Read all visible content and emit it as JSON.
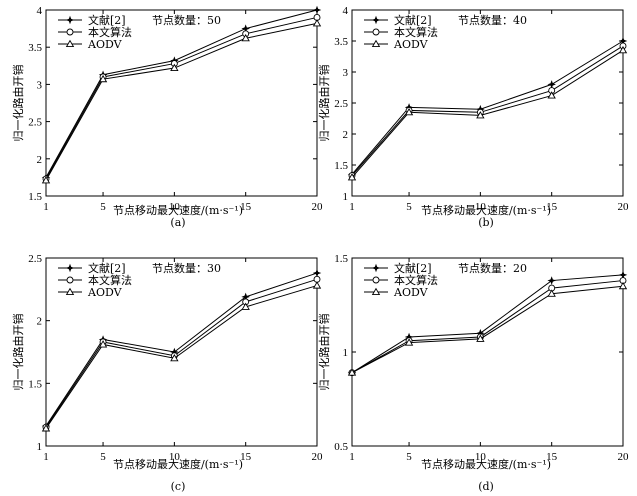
{
  "figure": {
    "series_styles": {
      "文献[2]": "star",
      "本文算法": "circle",
      "AODV": "triangle"
    },
    "colors": {
      "line": "#000000",
      "background": "#ffffff"
    }
  },
  "chart_data": [
    {
      "type": "line",
      "caption": "(a)",
      "annotation": "节点数量：50",
      "xlabel": "节点移动最大速度/(m·s⁻¹)",
      "ylabel": "归一化路由开销",
      "x": [
        1,
        5,
        10,
        15,
        20
      ],
      "xticks": [
        1,
        5,
        10,
        15,
        20
      ],
      "xlim": [
        1,
        20
      ],
      "ylim": [
        1.5,
        4
      ],
      "yticks": [
        1.5,
        2,
        2.5,
        3,
        3.5,
        4
      ],
      "ytick_labels": [
        "1.5",
        "2",
        "2.5",
        "3",
        "3.5",
        "4"
      ],
      "series": [
        {
          "name": "文献[2]",
          "values": [
            1.75,
            3.13,
            3.32,
            3.75,
            4.0
          ]
        },
        {
          "name": "本文算法",
          "values": [
            1.73,
            3.1,
            3.28,
            3.68,
            3.9
          ]
        },
        {
          "name": "AODV",
          "values": [
            1.71,
            3.07,
            3.22,
            3.62,
            3.82
          ]
        }
      ]
    },
    {
      "type": "line",
      "caption": "(b)",
      "annotation": "节点数量：40",
      "xlabel": "节点移动最大速度/(m·s⁻¹)",
      "ylabel": "归一化路由开销",
      "x": [
        1,
        5,
        10,
        15,
        20
      ],
      "xticks": [
        1,
        5,
        10,
        15,
        20
      ],
      "xlim": [
        1,
        20
      ],
      "ylim": [
        1,
        4
      ],
      "yticks": [
        1,
        1.5,
        2,
        2.5,
        3,
        3.5,
        4
      ],
      "ytick_labels": [
        "1",
        "1.5",
        "2",
        "2.5",
        "3",
        "3.5",
        "4"
      ],
      "series": [
        {
          "name": "文献[2]",
          "values": [
            1.35,
            2.43,
            2.4,
            2.8,
            3.5
          ]
        },
        {
          "name": "本文算法",
          "values": [
            1.33,
            2.38,
            2.35,
            2.7,
            3.42
          ]
        },
        {
          "name": "AODV",
          "values": [
            1.3,
            2.35,
            2.3,
            2.62,
            3.35
          ]
        }
      ]
    },
    {
      "type": "line",
      "caption": "(c)",
      "annotation": "节点数量：30",
      "xlabel": "节点移动最大速度/(m·s⁻¹)",
      "ylabel": "归一化路由开销",
      "x": [
        1,
        5,
        10,
        15,
        20
      ],
      "xticks": [
        1,
        5,
        10,
        15,
        20
      ],
      "xlim": [
        1,
        20
      ],
      "ylim": [
        1,
        2.5
      ],
      "yticks": [
        1,
        1.5,
        2,
        2.5
      ],
      "ytick_labels": [
        "1",
        "1.5",
        "2",
        "2.5"
      ],
      "series": [
        {
          "name": "文献[2]",
          "values": [
            1.16,
            1.85,
            1.75,
            2.19,
            2.38
          ]
        },
        {
          "name": "本文算法",
          "values": [
            1.15,
            1.83,
            1.72,
            2.15,
            2.33
          ]
        },
        {
          "name": "AODV",
          "values": [
            1.14,
            1.81,
            1.7,
            2.11,
            2.28
          ]
        }
      ]
    },
    {
      "type": "line",
      "caption": "(d)",
      "annotation": "节点数量：20",
      "xlabel": "节点移动最大速度/(m·s⁻¹)",
      "ylabel": "归一化路由开销",
      "x": [
        1,
        5,
        10,
        15,
        20
      ],
      "xticks": [
        1,
        5,
        10,
        15,
        20
      ],
      "xlim": [
        1,
        20
      ],
      "ylim": [
        0.5,
        1.5
      ],
      "yticks": [
        0.5,
        1,
        1.5
      ],
      "ytick_labels": [
        "0.5",
        "1",
        "1.5"
      ],
      "series": [
        {
          "name": "文献[2]",
          "values": [
            0.89,
            1.08,
            1.1,
            1.38,
            1.41
          ]
        },
        {
          "name": "本文算法",
          "values": [
            0.89,
            1.06,
            1.08,
            1.34,
            1.38
          ]
        },
        {
          "name": "AODV",
          "values": [
            0.89,
            1.05,
            1.07,
            1.31,
            1.35
          ]
        }
      ]
    }
  ]
}
